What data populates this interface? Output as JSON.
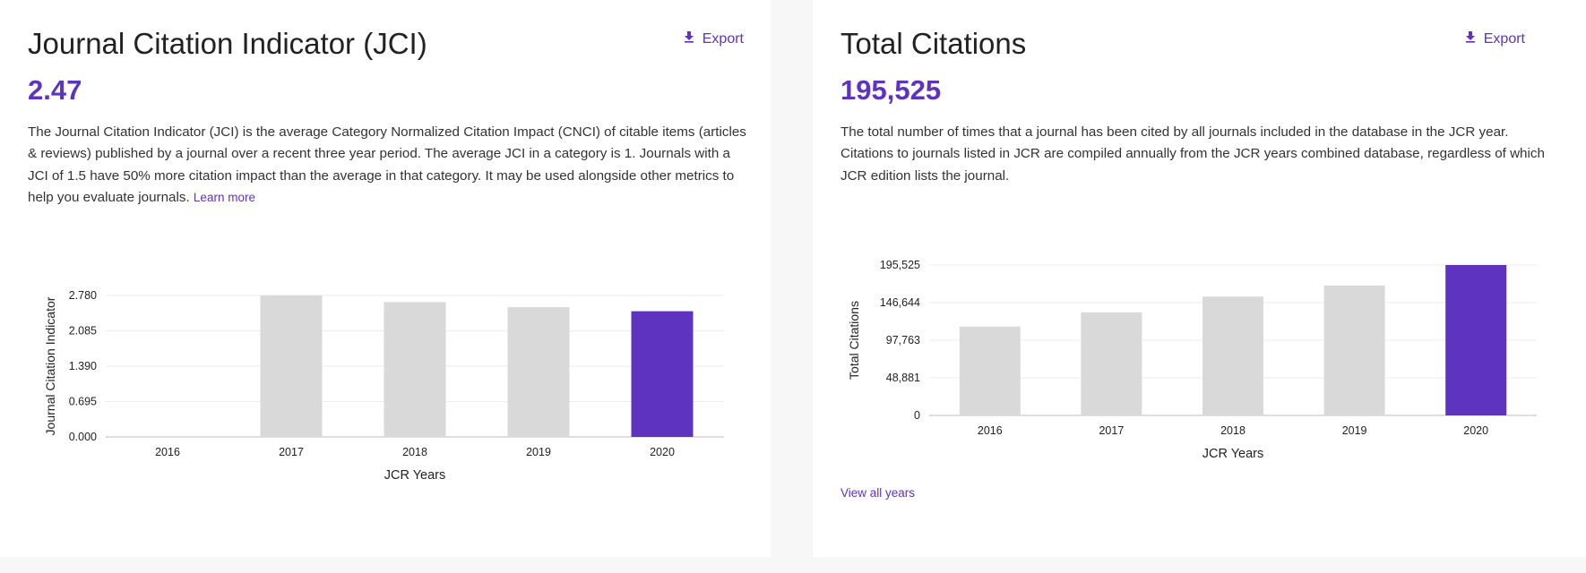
{
  "jci": {
    "title": "Journal Citation Indicator (JCI)",
    "export_label": "Export",
    "value": "2.47",
    "description": "The Journal Citation Indicator (JCI) is the average Category Normalized Citation Impact (CNCI) of citable items (articles & reviews) published by a journal over a recent three year period. The average JCI in a category is 1. Journals with a JCI of 1.5 have 50% more citation impact than the average in that category. It may be used alongside other metrics to help you evaluate journals.",
    "learn_more": "Learn more"
  },
  "total_citations": {
    "title": "Total Citations",
    "export_label": "Export",
    "value": "195,525",
    "description": "The total number of times that a journal has been cited by all journals included in the database in the JCR year. Citations to journals listed in JCR are compiled annually from the JCR years combined database, regardless of which JCR edition lists the journal.",
    "view_all": "View all years"
  },
  "colors": {
    "accent": "#5e33bf",
    "bar": "#d9d9d9",
    "highlight_bar": "#5e33bf",
    "page_bg": "#f7f7f7"
  },
  "icons": {
    "export": "download-icon"
  },
  "chart_data": [
    {
      "type": "bar",
      "categories": [
        "2016",
        "2017",
        "2018",
        "2019",
        "2020"
      ],
      "values": [
        null,
        2.78,
        2.65,
        2.55,
        2.47
      ],
      "highlight_index": 4,
      "ticks": [
        "0.000",
        "0.695",
        "1.390",
        "2.085",
        "2.780"
      ],
      "tick_values": [
        0,
        0.695,
        1.39,
        2.085,
        2.78
      ],
      "xlabel": "JCR Years",
      "ylabel": "Journal Citation Indicator",
      "ylim": [
        0,
        2.78
      ],
      "grid": true
    },
    {
      "type": "bar",
      "categories": [
        "2016",
        "2017",
        "2018",
        "2019",
        "2020"
      ],
      "values": [
        115500,
        134000,
        154500,
        169000,
        195525
      ],
      "highlight_index": 4,
      "ticks": [
        "0",
        "48,881",
        "97,763",
        "146,644",
        "195,525"
      ],
      "tick_values": [
        0,
        48881,
        97763,
        146644,
        195525
      ],
      "xlabel": "JCR Years",
      "ylabel": "Total Citations",
      "ylim": [
        0,
        195525
      ],
      "grid": true
    }
  ]
}
